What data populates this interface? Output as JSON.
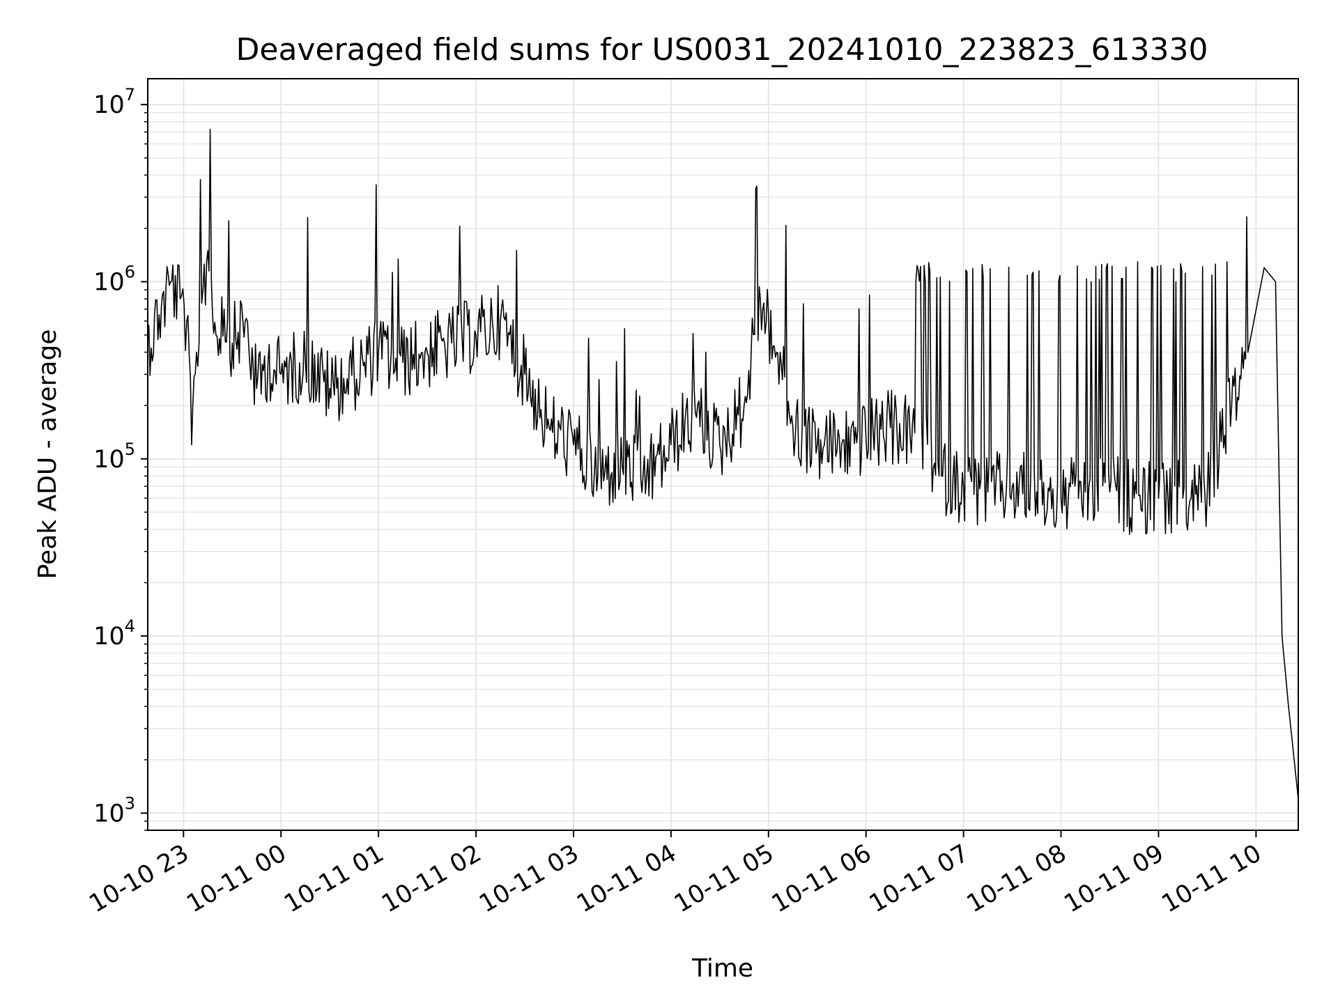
{
  "chart_data": {
    "type": "line",
    "title": "Deaveraged field sums for US0031_20241010_223823_613330",
    "xlabel": "Time",
    "ylabel": "Peak ADU - average",
    "x_range": [
      "2024-10-10 22:38",
      "2024-10-11 10:26"
    ],
    "y_scale": "log",
    "ylim": [
      800,
      14000000
    ],
    "grid": true,
    "line_color": "#000000",
    "grid_color": "#e6e6e6",
    "x_ticks": [
      "2024-10-10 23:00",
      "2024-10-11 00:00",
      "2024-10-11 01:00",
      "2024-10-11 02:00",
      "2024-10-11 03:00",
      "2024-10-11 04:00",
      "2024-10-11 05:00",
      "2024-10-11 06:00",
      "2024-10-11 07:00",
      "2024-10-11 08:00",
      "2024-10-11 09:00",
      "2024-10-11 10:00"
    ],
    "x_tick_labels": [
      "10-10 23",
      "10-11 00",
      "10-11 01",
      "10-11 02",
      "10-11 03",
      "10-11 04",
      "10-11 05",
      "10-11 06",
      "10-11 07",
      "10-11 08",
      "10-11 09",
      "10-11 10"
    ],
    "y_ticks": [
      1000,
      10000,
      100000,
      1000000,
      10000000
    ],
    "y_tick_labels": [
      {
        "base": "10",
        "exp": "3"
      },
      {
        "base": "10",
        "exp": "4"
      },
      {
        "base": "10",
        "exp": "5"
      },
      {
        "base": "10",
        "exp": "6"
      },
      {
        "base": "10",
        "exp": "7"
      }
    ],
    "series": [
      {
        "x": [
          "2024-10-10 22:38",
          "2024-10-10 22:45",
          "2024-10-10 22:52",
          "2024-10-10 22:58",
          "2024-10-10 23:02",
          "2024-10-10 23:05",
          "2024-10-10 23:08",
          "2024-10-10 23:12",
          "2024-10-10 23:15",
          "2024-10-10 23:20",
          "2024-10-10 23:25",
          "2024-10-10 23:30",
          "2024-10-10 23:38",
          "2024-10-10 23:45",
          "2024-10-10 23:52",
          "2024-10-11 00:00",
          "2024-10-11 00:15",
          "2024-10-11 00:30",
          "2024-10-11 00:45",
          "2024-10-11 01:00",
          "2024-10-11 01:15",
          "2024-10-11 01:30",
          "2024-10-11 01:45",
          "2024-10-11 02:00",
          "2024-10-11 02:15",
          "2024-10-11 02:30",
          "2024-10-11 02:45",
          "2024-10-11 03:00",
          "2024-10-11 03:15",
          "2024-10-11 03:30",
          "2024-10-11 03:45",
          "2024-10-11 04:00",
          "2024-10-11 04:15",
          "2024-10-11 04:30",
          "2024-10-11 04:45",
          "2024-10-11 04:55",
          "2024-10-11 05:05",
          "2024-10-11 05:15",
          "2024-10-11 05:30",
          "2024-10-11 05:45",
          "2024-10-11 06:00",
          "2024-10-11 06:15",
          "2024-10-11 06:30",
          "2024-10-11 06:45",
          "2024-10-11 07:00",
          "2024-10-11 07:15",
          "2024-10-11 07:30",
          "2024-10-11 07:45",
          "2024-10-11 08:00",
          "2024-10-11 08:15",
          "2024-10-11 08:30",
          "2024-10-11 08:45",
          "2024-10-11 09:00",
          "2024-10-11 09:15",
          "2024-10-11 09:30",
          "2024-10-11 09:45",
          "2024-10-11 09:55",
          "2024-10-11 10:05",
          "2024-10-11 10:12",
          "2024-10-11 10:16",
          "2024-10-11 10:20",
          "2024-10-11 10:26"
        ],
        "y": [
          450000,
          650000,
          1000000,
          800000,
          600000,
          120000,
          400000,
          900000,
          1500000,
          500000,
          700000,
          450000,
          600000,
          250000,
          350000,
          300000,
          350000,
          250000,
          300000,
          400000,
          350000,
          400000,
          450000,
          500000,
          600000,
          300000,
          150000,
          120000,
          80000,
          90000,
          80000,
          120000,
          180000,
          120000,
          200000,
          800000,
          400000,
          150000,
          120000,
          120000,
          130000,
          150000,
          140000,
          80000,
          70000,
          65000,
          70000,
          65000,
          60000,
          65000,
          65000,
          60000,
          60000,
          60000,
          65000,
          200000,
          400000,
          1200000,
          1000000,
          10000,
          4000,
          1200
        ]
      }
    ]
  }
}
